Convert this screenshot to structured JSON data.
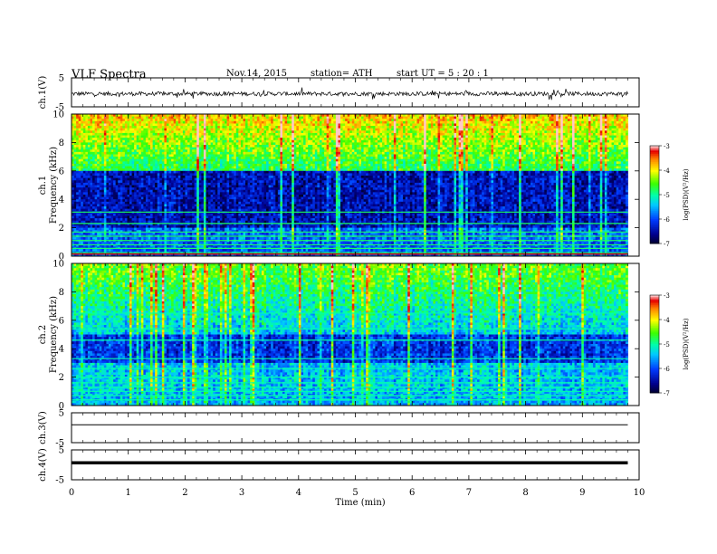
{
  "header": {
    "title": "VLF  Spectra",
    "date": "Nov.14, 2015",
    "station": "station= ATH",
    "start": "start  UT  =   5  : 20 : 1"
  },
  "chart_data": [
    {
      "type": "line",
      "id": "ch1-waveform",
      "ylabel": "ch.1(V)",
      "ylim": [
        -5,
        5
      ],
      "yticks": [
        "5",
        "-5"
      ],
      "series": [
        {
          "values": "noisy waveform around -0.5 V, amplitude about ±1 V",
          "color": "#000000"
        }
      ]
    },
    {
      "type": "heatmap",
      "id": "ch1-spectrogram",
      "ylabel_top": "ch.1",
      "ylabel": "Frequency  (kHz)",
      "ylim": [
        0,
        10
      ],
      "yticks": [
        "0",
        "2",
        "4",
        "6",
        "8",
        "10"
      ],
      "xlim": [
        0,
        10
      ],
      "data_extent_min": 9.8,
      "colorbar": {
        "label": "log(PSD)(V²/Hz)",
        "ticks": [
          "-3",
          "-4",
          "-5",
          "-6",
          "-7"
        ],
        "range": [
          -7,
          -3
        ]
      },
      "bands": [
        {
          "from_khz": 0,
          "to_khz": 2,
          "level": "mixed -6 to -3 with persistent narrowband lines"
        },
        {
          "from_khz": 2,
          "to_khz": 6,
          "level": "about -6.5 (background)"
        },
        {
          "from_khz": 6,
          "to_khz": 10,
          "level": "about -5.0 rising to -4.0 near 10 kHz"
        }
      ]
    },
    {
      "type": "heatmap",
      "id": "ch2-spectrogram",
      "ylabel_top": "ch.2",
      "ylabel": "Frequency  (kHz)",
      "ylim": [
        0,
        10
      ],
      "yticks": [
        "0",
        "2",
        "4",
        "6",
        "8",
        "10"
      ],
      "xlim": [
        0,
        10
      ],
      "data_extent_min": 9.8,
      "colorbar": {
        "label": "log(PSD)(V²/Hz)",
        "ticks": [
          "-3",
          "-4",
          "-5",
          "-6",
          "-7"
        ],
        "range": [
          -7,
          -3
        ]
      },
      "bands": [
        {
          "from_khz": 0,
          "to_khz": 3,
          "level": "about -5.5 with many narrowband lines"
        },
        {
          "from_khz": 3,
          "to_khz": 5,
          "level": "about -6.3"
        },
        {
          "from_khz": 5,
          "to_khz": 10,
          "level": "about -5.5 rising to -4.5 near 10 kHz"
        }
      ]
    },
    {
      "type": "line",
      "id": "ch3-waveform",
      "ylabel": "ch.3(V)",
      "ylim": [
        -5,
        5
      ],
      "yticks": [
        "5",
        "-5"
      ],
      "series": [
        {
          "values": "flat line near +1 V",
          "color": "#000000"
        }
      ]
    },
    {
      "type": "line",
      "id": "ch4-waveform",
      "ylabel": "ch.4(V)",
      "ylim": [
        -5,
        5
      ],
      "yticks": [
        "5",
        "-5"
      ],
      "series": [
        {
          "values": "thick flat line near +0.7 V",
          "color": "#000000"
        }
      ]
    }
  ],
  "x_axis": {
    "label": "Time  (min)",
    "ticks": [
      "0",
      "1",
      "2",
      "3",
      "4",
      "5",
      "6",
      "7",
      "8",
      "9",
      "10"
    ],
    "xlim": [
      0,
      10
    ]
  }
}
